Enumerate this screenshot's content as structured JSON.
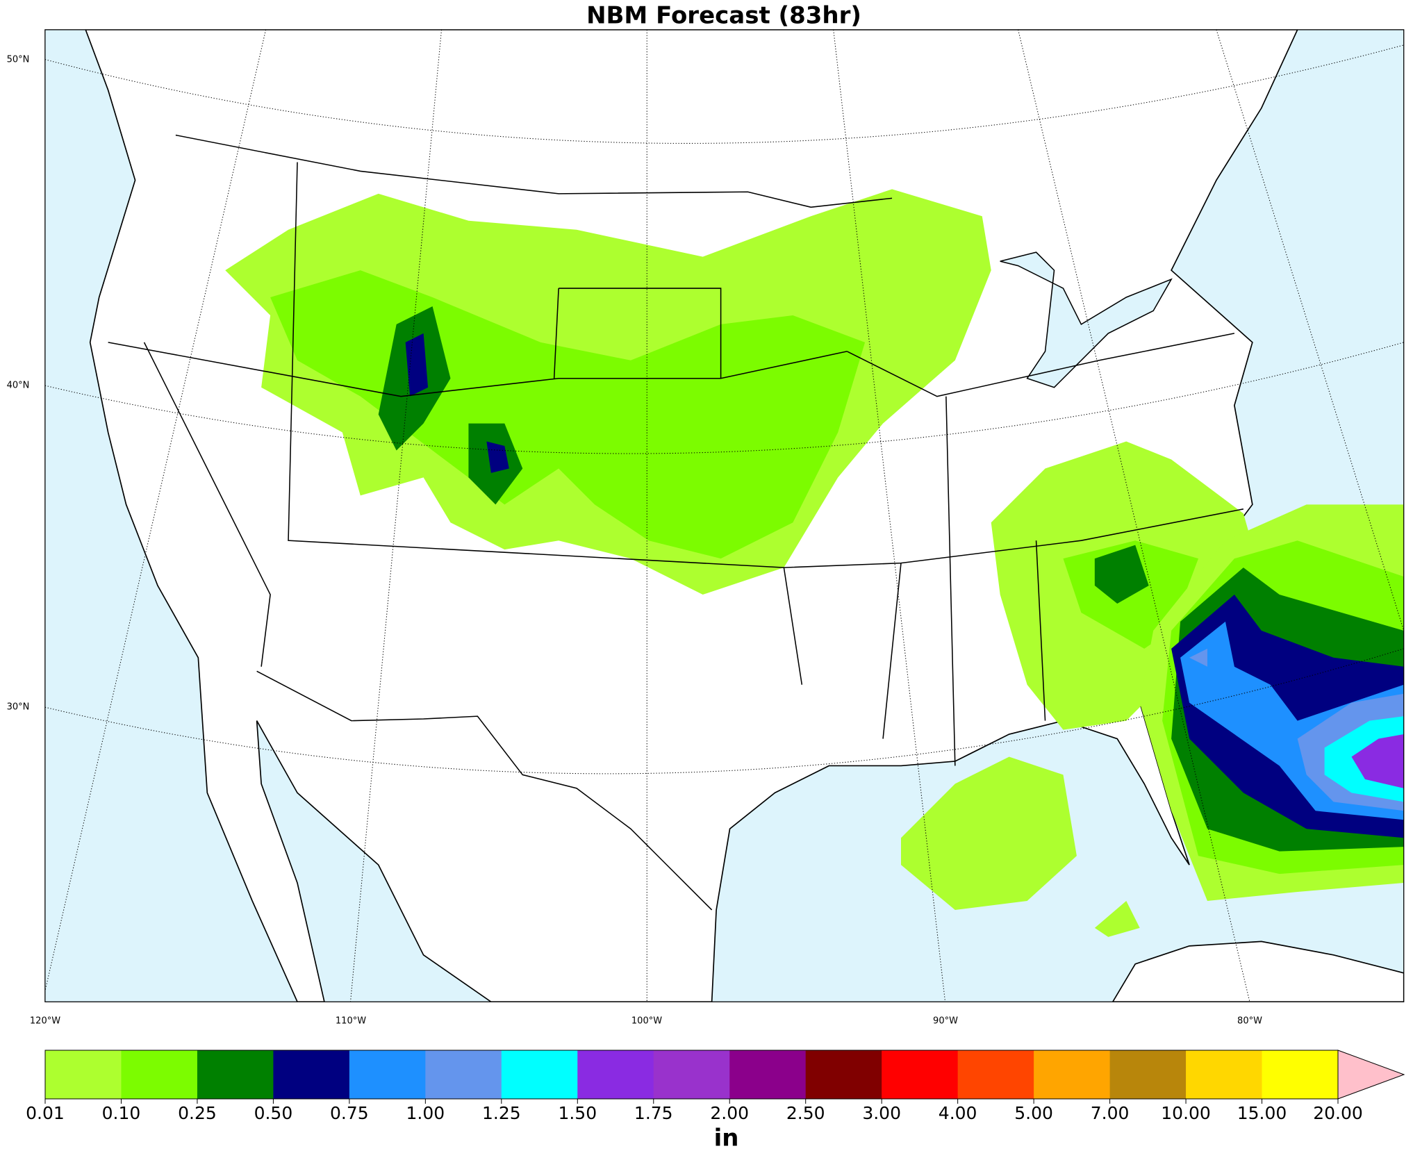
{
  "title": "NBM Forecast (83hr)",
  "map": {
    "lat_labels": [
      "50°N",
      "40°N",
      "30°N"
    ],
    "lon_labels": [
      "120°W",
      "110°W",
      "100°W",
      "90°W",
      "80°W"
    ]
  },
  "colorbar": {
    "label": "in",
    "ticks": [
      {
        "value": 0.01,
        "label": "0.01"
      },
      {
        "value": 0.1,
        "label": "0.10"
      },
      {
        "value": 0.25,
        "label": "0.25"
      },
      {
        "value": 0.5,
        "label": "0.50"
      },
      {
        "value": 0.75,
        "label": "0.75"
      },
      {
        "value": 1,
        "label": "1.00"
      },
      {
        "value": 1.25,
        "label": "1.25"
      },
      {
        "value": 1.5,
        "label": "1.50"
      },
      {
        "value": 1.75,
        "label": "1.75"
      },
      {
        "value": 2,
        "label": "2.00"
      },
      {
        "value": 2.5,
        "label": "2.50"
      },
      {
        "value": 3,
        "label": "3.00"
      },
      {
        "value": 4,
        "label": "4.00"
      },
      {
        "value": 5,
        "label": "5.00"
      },
      {
        "value": 7,
        "label": "7.00"
      },
      {
        "value": 10,
        "label": "10.00"
      },
      {
        "value": 15,
        "label": "15.00"
      },
      {
        "value": 20,
        "label": "20.00"
      }
    ],
    "colors": [
      "#adff2f",
      "#7cfc00",
      "#008000",
      "#000080",
      "#1e90ff",
      "#6495ed",
      "#00ffff",
      "#8a2be2",
      "#9932cc",
      "#8b008b",
      "#800000",
      "#ff0000",
      "#ff4500",
      "#ffa500",
      "#b8860b",
      "#ffd700",
      "#ffff00"
    ],
    "extend_color": "#ffc0cb"
  }
}
